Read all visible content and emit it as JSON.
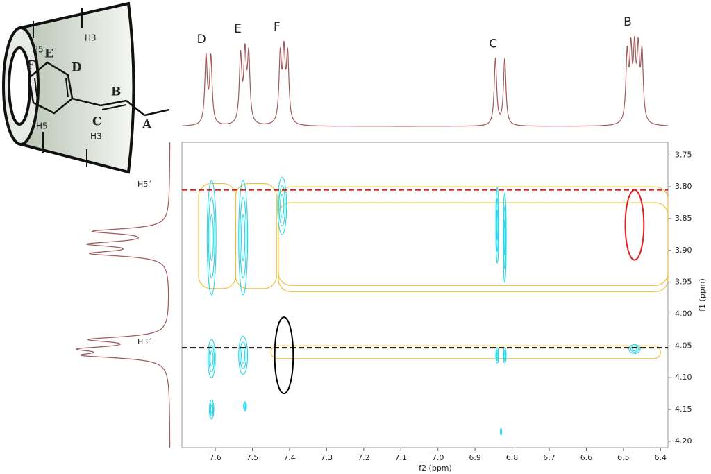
{
  "diagram": {
    "labels": [
      "H5",
      "E",
      "F",
      "D",
      "B",
      "C",
      "A",
      "H3",
      "H5",
      "H3"
    ]
  },
  "chart_data": {
    "type": "contour",
    "xlabel": "f2 (ppm)",
    "ylabel": "f1 (ppm)",
    "xlim": [
      7.69,
      6.38
    ],
    "ylim": [
      3.73,
      4.21
    ],
    "xticks": [
      7.6,
      7.5,
      7.4,
      7.3,
      7.2,
      7.1,
      {
        "value": 7.0,
        "label": "7.0"
      },
      6.9,
      6.8,
      6.7,
      6.6,
      6.5,
      6.4
    ],
    "yticks": [
      3.75,
      {
        "value": 3.8,
        "label": "3.80"
      },
      3.85,
      {
        "value": 3.9,
        "label": "3.90"
      },
      3.95,
      {
        "value": 4.0,
        "label": "4.00"
      },
      4.05,
      {
        "value": 4.1,
        "label": "4.10"
      },
      4.15,
      {
        "value": 4.2,
        "label": "4.20"
      }
    ],
    "f2_projection": [
      {
        "label": "D",
        "lines": [
          7.625,
          7.612
        ]
      },
      {
        "label": "E",
        "lines": [
          7.532,
          7.52,
          7.51
        ]
      },
      {
        "label": "F",
        "lines": [
          7.425,
          7.415,
          7.405
        ]
      },
      {
        "label": "C",
        "lines": [
          6.845,
          6.82
        ]
      },
      {
        "label": "B",
        "lines": [
          6.49,
          6.48,
          6.47,
          6.46,
          6.45
        ]
      }
    ],
    "f1_projection": [
      3.87,
      3.89,
      3.905,
      4.04,
      4.055,
      4.065
    ],
    "projection_color": "#a05a5a",
    "reference_lines": [
      {
        "label": "H5´",
        "y": 3.805,
        "color": "#e02020"
      },
      {
        "label": "H3´",
        "y": 4.053,
        "color": "#000000"
      }
    ],
    "positive_color": "#33d6e6",
    "positive_peaks": [
      {
        "x": 7.61,
        "y": 3.88,
        "rx": 0.012,
        "ry": 0.09
      },
      {
        "x": 7.525,
        "y": 3.88,
        "rx": 0.012,
        "ry": 0.09
      },
      {
        "x": 7.42,
        "y": 3.83,
        "rx": 0.012,
        "ry": 0.045
      },
      {
        "x": 7.61,
        "y": 4.07,
        "rx": 0.01,
        "ry": 0.03
      },
      {
        "x": 7.525,
        "y": 4.065,
        "rx": 0.012,
        "ry": 0.03
      },
      {
        "x": 6.84,
        "y": 3.86,
        "rx": 0.004,
        "ry": 0.06
      },
      {
        "x": 6.82,
        "y": 3.88,
        "rx": 0.004,
        "ry": 0.07
      },
      {
        "x": 6.84,
        "y": 4.065,
        "rx": 0.004,
        "ry": 0.012
      },
      {
        "x": 6.82,
        "y": 4.065,
        "rx": 0.004,
        "ry": 0.012
      },
      {
        "x": 6.47,
        "y": 4.055,
        "rx": 0.015,
        "ry": 0.007
      },
      {
        "x": 7.61,
        "y": 4.15,
        "rx": 0.006,
        "ry": 0.015
      },
      {
        "x": 7.52,
        "y": 4.145,
        "rx": 0.004,
        "ry": 0.007
      },
      {
        "x": 6.83,
        "y": 4.185,
        "rx": 0.002,
        "ry": 0.005
      }
    ],
    "negative_color": "#f2c040",
    "negative_regions": [
      {
        "x": [
          7.43,
          6.38
        ],
        "y": [
          3.8,
          3.965
        ]
      },
      {
        "x": [
          7.43,
          6.38
        ],
        "y": [
          3.825,
          3.955
        ]
      },
      {
        "x": [
          7.645,
          7.545
        ],
        "y": [
          3.795,
          3.96
        ]
      },
      {
        "x": [
          7.545,
          7.435
        ],
        "y": [
          3.795,
          3.96
        ]
      },
      {
        "x": [
          7.45,
          6.4
        ],
        "y": [
          4.05,
          4.07
        ]
      }
    ],
    "highlight_ellipses": [
      {
        "x": 6.47,
        "y": 3.86,
        "rx": 0.025,
        "ry": 0.055,
        "color": "#e02020"
      },
      {
        "x": 7.415,
        "y": 4.065,
        "rx": 0.025,
        "ry": 0.06,
        "color": "#000000"
      }
    ]
  }
}
